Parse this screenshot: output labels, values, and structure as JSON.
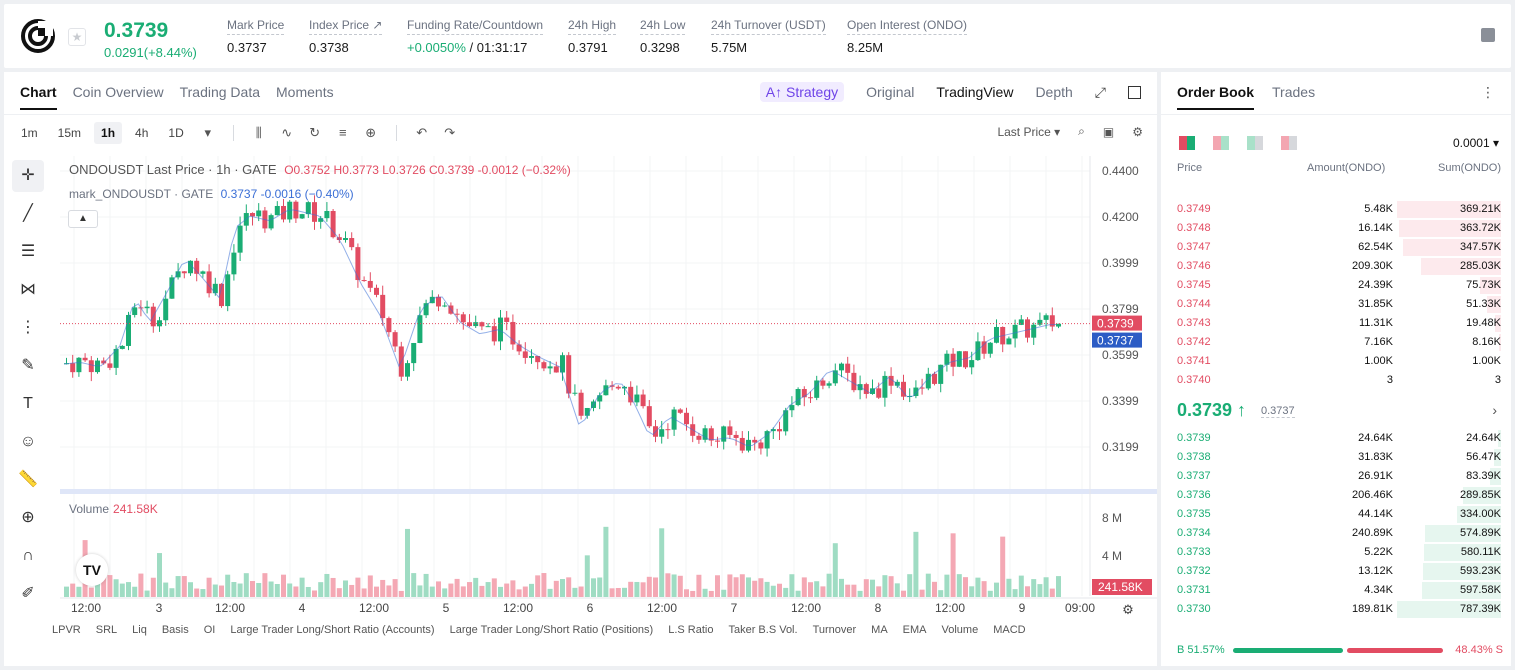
{
  "header": {
    "last_price": "0.3739",
    "change": "0.0291(+8.44%)",
    "stats": [
      {
        "label": "Mark Price",
        "value": "0.3737",
        "left": 223
      },
      {
        "label": "Index Price ↗",
        "value": "0.3738",
        "left": 305
      },
      {
        "label": "Funding Rate/Countdown",
        "value_green": "+0.0050%",
        "value": " / 01:31:17",
        "left": 403
      },
      {
        "label": "24h High",
        "value": "0.3791",
        "left": 564
      },
      {
        "label": "24h Low",
        "value": "0.3298",
        "left": 636
      },
      {
        "label": "24h Turnover (USDT)",
        "value": "5.75M",
        "left": 707
      },
      {
        "label": "Open Interest (ONDO)",
        "value": "8.25M",
        "left": 843
      }
    ]
  },
  "chart_tabs": [
    "Chart",
    "Coin Overview",
    "Trading Data",
    "Moments"
  ],
  "view_tabs": {
    "strategy": "A↑ Strategy",
    "original": "Original",
    "tradingview": "TradingView",
    "depth": "Depth"
  },
  "timeframes": [
    "1m",
    "15m",
    "1h",
    "4h",
    "1D"
  ],
  "active_timeframe": "1h",
  "price_type": "Last Price",
  "legend": {
    "symbol": "ONDOUSDT Last Price · 1h · GATE",
    "ohlc": "O0.3752  H0.3773  L0.3726  C0.3739  -0.0012  (−0.32%)",
    "mark_symbol": "mark_ONDOUSDT · GATE",
    "mark_values": "0.3737  -0.0016  (−0.40%)"
  },
  "volume_legend": {
    "label": "Volume",
    "value": "241.58K"
  },
  "y_axis_labels": [
    "0.4400",
    "0.4200",
    "0.3999",
    "0.3799",
    "0.3599",
    "0.3399",
    "0.3199"
  ],
  "price_tags": {
    "last": "0.3739",
    "mark": "0.3737",
    "volume": "241.58K"
  },
  "vol_axis_labels": [
    "8 M",
    "4 M"
  ],
  "x_axis_labels": [
    "12:00",
    "3",
    "12:00",
    "4",
    "12:00",
    "5",
    "12:00",
    "6",
    "12:00",
    "7",
    "12:00",
    "8",
    "12:00",
    "9",
    "09:00"
  ],
  "indicators": [
    "LPVR",
    "SRL",
    "Liq",
    "Basis",
    "OI",
    "Large Trader Long/Short Ratio (Accounts)",
    "Large Trader Long/Short Ratio (Positions)",
    "L.S Ratio",
    "Taker B.S Vol.",
    "Turnover",
    "MA",
    "EMA",
    "Volume",
    "MACD"
  ],
  "order_book": {
    "tabs": [
      "Order Book",
      "Trades"
    ],
    "precision": "0.0001",
    "headers": {
      "price": "Price",
      "amount": "Amount(ONDO)",
      "sum": "Sum(ONDO)"
    },
    "asks": [
      {
        "price": "0.3749",
        "amount": "5.48K",
        "sum": "369.21K",
        "depth": 1.0
      },
      {
        "price": "0.3748",
        "amount": "16.14K",
        "sum": "363.72K",
        "depth": 0.985
      },
      {
        "price": "0.3747",
        "amount": "62.54K",
        "sum": "347.57K",
        "depth": 0.941
      },
      {
        "price": "0.3746",
        "amount": "209.30K",
        "sum": "285.03K",
        "depth": 0.772
      },
      {
        "price": "0.3745",
        "amount": "24.39K",
        "sum": "75.73K",
        "depth": 0.205
      },
      {
        "price": "0.3744",
        "amount": "31.85K",
        "sum": "51.33K",
        "depth": 0.139
      },
      {
        "price": "0.3743",
        "amount": "11.31K",
        "sum": "19.48K",
        "depth": 0.053
      },
      {
        "price": "0.3742",
        "amount": "7.16K",
        "sum": "8.16K",
        "depth": 0.022
      },
      {
        "price": "0.3741",
        "amount": "1.00K",
        "sum": "1.00K",
        "depth": 0.003
      },
      {
        "price": "0.3740",
        "amount": "3",
        "sum": "3",
        "depth": 0.0
      }
    ],
    "mid_price": "0.3739 ↑",
    "mid_mark": "0.3737",
    "bids": [
      {
        "price": "0.3739",
        "amount": "24.64K",
        "sum": "24.64K",
        "depth": 0.031
      },
      {
        "price": "0.3738",
        "amount": "31.83K",
        "sum": "56.47K",
        "depth": 0.072
      },
      {
        "price": "0.3737",
        "amount": "26.91K",
        "sum": "83.39K",
        "depth": 0.106
      },
      {
        "price": "0.3736",
        "amount": "206.46K",
        "sum": "289.85K",
        "depth": 0.368
      },
      {
        "price": "0.3735",
        "amount": "44.14K",
        "sum": "334.00K",
        "depth": 0.424
      },
      {
        "price": "0.3734",
        "amount": "240.89K",
        "sum": "574.89K",
        "depth": 0.73
      },
      {
        "price": "0.3733",
        "amount": "5.22K",
        "sum": "580.11K",
        "depth": 0.737
      },
      {
        "price": "0.3732",
        "amount": "13.12K",
        "sum": "593.23K",
        "depth": 0.753
      },
      {
        "price": "0.3731",
        "amount": "4.34K",
        "sum": "597.58K",
        "depth": 0.759
      },
      {
        "price": "0.3730",
        "amount": "189.81K",
        "sum": "787.39K",
        "depth": 1.0
      }
    ],
    "buy_ratio": "B 51.57%",
    "sell_ratio": "48.43% S"
  },
  "colors": {
    "up": "#1aad74",
    "down": "#e24c62",
    "accent": "#6f44e8"
  }
}
